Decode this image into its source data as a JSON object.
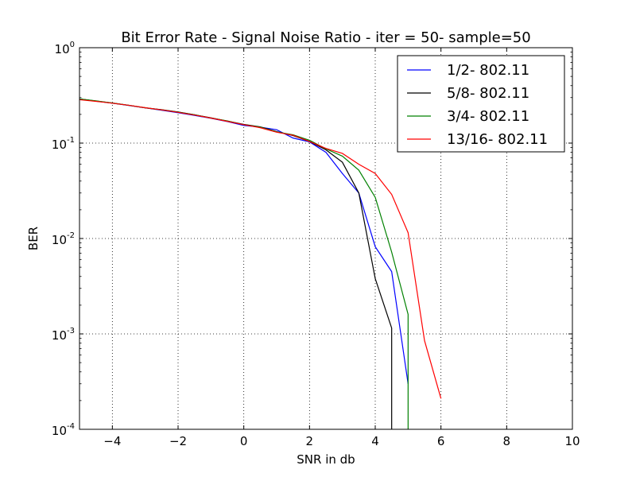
{
  "chart_data": {
    "type": "line",
    "title": "Bit Error Rate - Signal Noise Ratio - iter = 50- sample=50",
    "xlabel": "SNR in db",
    "ylabel": "BER",
    "xlim": [
      -5,
      10
    ],
    "ylim": [
      0.0001,
      1
    ],
    "yscale": "log",
    "grid": true,
    "legend_position": "top-right",
    "x_ticks": [
      "−4",
      "−2",
      "0",
      "2",
      "4",
      "6",
      "8",
      "10"
    ],
    "x_tick_values": [
      -4,
      -2,
      0,
      2,
      4,
      6,
      8,
      10
    ],
    "y_ticks": [
      {
        "value": 0.0001,
        "base": "10",
        "exp": "-4"
      },
      {
        "value": 0.001,
        "base": "10",
        "exp": "-3"
      },
      {
        "value": 0.01,
        "base": "10",
        "exp": "-2"
      },
      {
        "value": 0.1,
        "base": "10",
        "exp": "-1"
      },
      {
        "value": 1,
        "base": "10",
        "exp": "0"
      }
    ],
    "series": [
      {
        "name": "1/2- 802.11",
        "color": "#0000ff",
        "x": [
          -5,
          -4.5,
          -4,
          -3.5,
          -3,
          -2.5,
          -2,
          -1.5,
          -1,
          -0.5,
          0,
          0.5,
          1,
          1.5,
          2,
          2.5,
          3,
          3.5,
          4,
          4.5,
          5
        ],
        "y": [
          0.29,
          0.275,
          0.262,
          0.248,
          0.234,
          0.221,
          0.208,
          0.195,
          0.182,
          0.168,
          0.153,
          0.147,
          0.138,
          0.113,
          0.103,
          0.08,
          0.048,
          0.03,
          0.0082,
          0.0045,
          0.0003
        ]
      },
      {
        "name": "5/8- 802.11",
        "color": "#000000",
        "x": [
          -5,
          -4.5,
          -4,
          -3.5,
          -3,
          -2.5,
          -2,
          -1.5,
          -1,
          -0.5,
          0,
          0.5,
          1,
          1.5,
          2,
          2.5,
          3,
          3.5,
          4,
          4.5,
          4.5
        ],
        "y": [
          0.29,
          0.276,
          0.263,
          0.249,
          0.234,
          0.224,
          0.212,
          0.198,
          0.184,
          0.17,
          0.157,
          0.148,
          0.132,
          0.12,
          0.104,
          0.085,
          0.063,
          0.03,
          0.0038,
          0.00115,
          0.0001
        ]
      },
      {
        "name": "3/4- 802.11",
        "color": "#008000",
        "x": [
          -5,
          -4.5,
          -4,
          -3.5,
          -3,
          -2.5,
          -2,
          -1.5,
          -1,
          -0.5,
          0,
          0.5,
          1,
          1.5,
          2,
          2.5,
          3,
          3.5,
          4,
          4.5,
          5,
          5
        ],
        "y": [
          0.29,
          0.277,
          0.263,
          0.249,
          0.235,
          0.223,
          0.211,
          0.198,
          0.183,
          0.171,
          0.156,
          0.147,
          0.131,
          0.122,
          0.107,
          0.087,
          0.073,
          0.052,
          0.027,
          0.0072,
          0.0016,
          0.0001
        ]
      },
      {
        "name": "13/16- 802.11",
        "color": "#ff0000",
        "x": [
          -5,
          -4.5,
          -4,
          -3.5,
          -3,
          -2.5,
          -2,
          -1.5,
          -1,
          -0.5,
          0,
          0.5,
          1,
          1.5,
          2,
          2.5,
          3,
          3.5,
          4,
          4.5,
          5,
          5.5,
          6
        ],
        "y": [
          0.285,
          0.274,
          0.262,
          0.249,
          0.235,
          0.223,
          0.21,
          0.197,
          0.183,
          0.169,
          0.156,
          0.145,
          0.13,
          0.121,
          0.104,
          0.088,
          0.078,
          0.06,
          0.048,
          0.029,
          0.0115,
          0.00085,
          0.00021
        ]
      }
    ]
  }
}
